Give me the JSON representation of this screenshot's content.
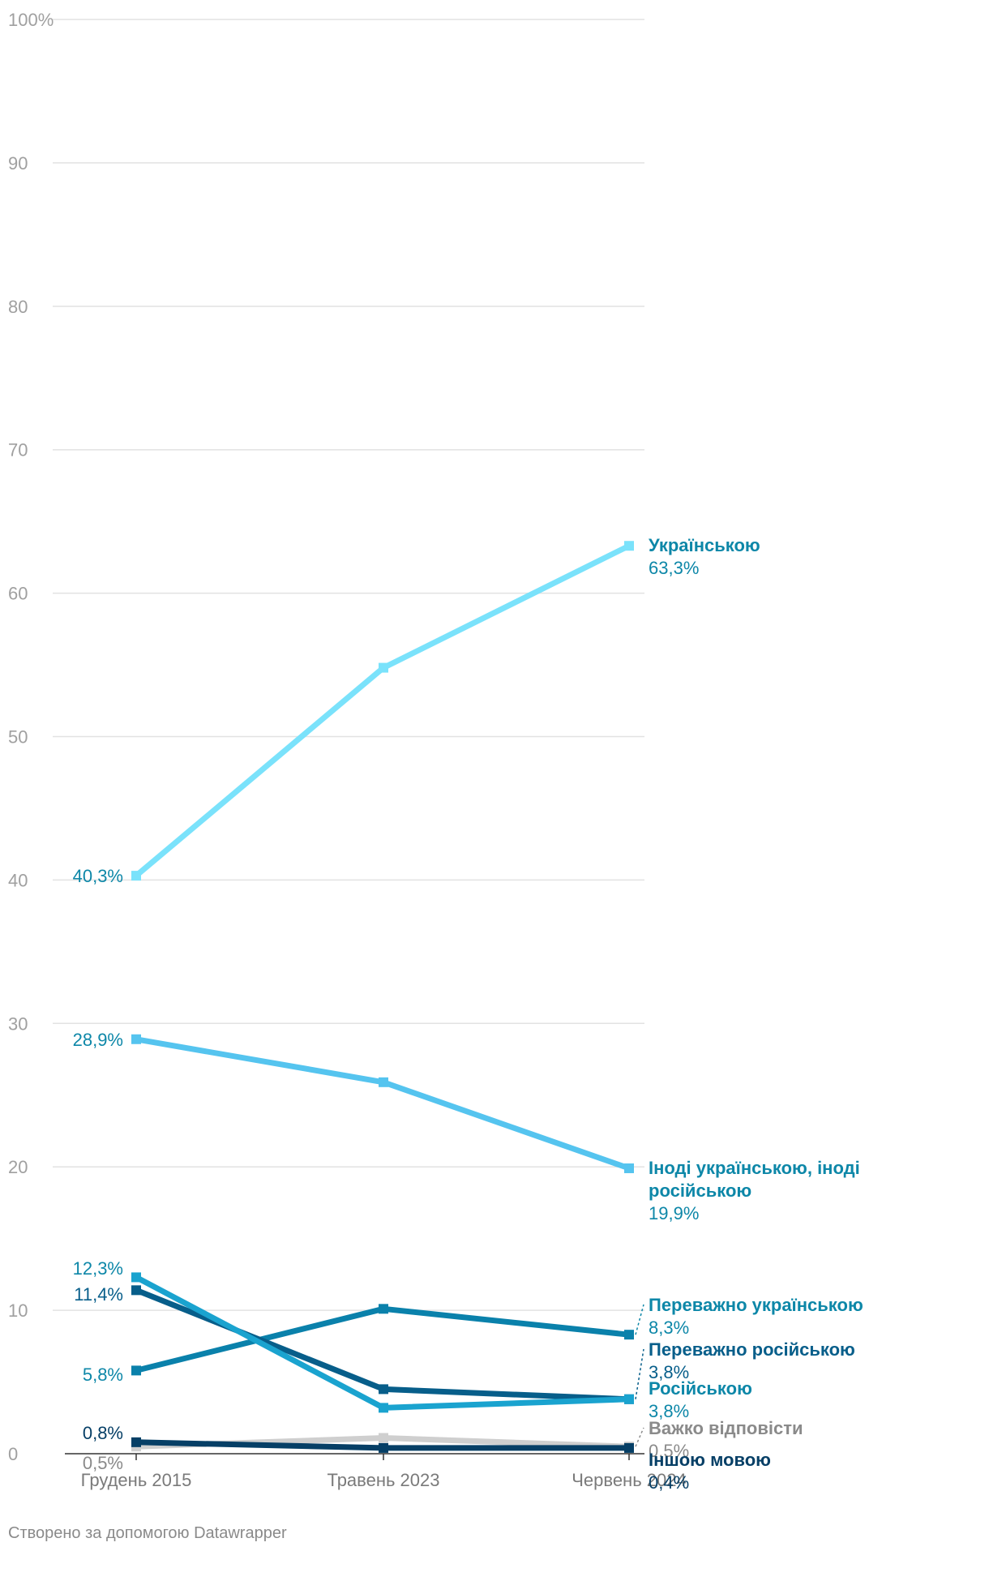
{
  "chart_data": {
    "type": "line",
    "categories": [
      "Грудень 2015",
      "Травень 2023",
      "Червень 2024"
    ],
    "ylim": [
      0,
      100
    ],
    "yticks": [
      0,
      10,
      20,
      30,
      40,
      50,
      60,
      70,
      80,
      90,
      100
    ],
    "ytick_labels": [
      "0",
      "10",
      "20",
      "30",
      "40",
      "50",
      "60",
      "70",
      "80",
      "90",
      "100%"
    ],
    "grid": true,
    "series": [
      {
        "name": "Українською",
        "values": [
          40.3,
          54.8,
          63.3
        ],
        "color": "#7ae2fb",
        "label_color": "#0d87a8",
        "start_label": "40,3%",
        "end_label": [
          "Українською"
        ],
        "end_value": "63,3%"
      },
      {
        "name": "Іноді українською, іноді російською",
        "values": [
          28.9,
          25.9,
          19.9
        ],
        "color": "#55c4ef",
        "label_color": "#0d87a8",
        "start_label": "28,9%",
        "end_label": [
          "Іноді українською, іноді",
          "російською"
        ],
        "end_value": "19,9%"
      },
      {
        "name": "Переважно українською",
        "values": [
          5.8,
          10.1,
          8.3
        ],
        "color": "#0a81ab",
        "label_color": "#0d87a8",
        "start_label": "5,8%",
        "end_label": [
          "Переважно українською"
        ],
        "end_value": "8,3%"
      },
      {
        "name": "Переважно російською",
        "values": [
          11.4,
          4.5,
          3.8
        ],
        "color": "#075e8a",
        "label_color": "#075e8a",
        "start_label": "11,4%",
        "end_label": [
          "Переважно російською"
        ],
        "end_value": "3,8%"
      },
      {
        "name": "Російською",
        "values": [
          12.3,
          3.2,
          3.8
        ],
        "color": "#1aa3cf",
        "label_color": "#0d87a8",
        "start_label": "12,3%",
        "end_label": [
          "Російською"
        ],
        "end_value": "3,8%"
      },
      {
        "name": "Важко відповісти",
        "values": [
          0.5,
          1.1,
          0.5
        ],
        "color": "#cfcfcf",
        "label_color": "#8a8a8a",
        "start_label": "0,5%",
        "end_label": [
          "Важко відповісти"
        ],
        "end_value": "0,5%"
      },
      {
        "name": "Іншою мовою",
        "values": [
          0.8,
          0.4,
          0.4
        ],
        "color": "#063f66",
        "label_color": "#063f66",
        "start_label": "0,8%",
        "end_label": [
          "Іншою мовою"
        ],
        "end_value": "0,4%"
      }
    ]
  },
  "footer": "Створено за допомогою Datawrapper"
}
